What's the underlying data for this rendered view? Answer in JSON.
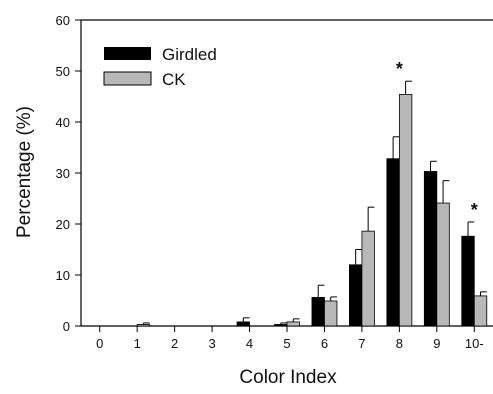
{
  "chart_data": {
    "type": "bar",
    "xlabel": "Color Index",
    "ylabel": "Percentage (%)",
    "ylim": [
      0,
      60
    ],
    "yticks": [
      0,
      10,
      20,
      30,
      40,
      50,
      60
    ],
    "categories": [
      "0",
      "1",
      "2",
      "3",
      "4",
      "5",
      "6",
      "7",
      "8",
      "9",
      "10-"
    ],
    "legend_position": "top-left",
    "grid": false,
    "series": [
      {
        "name": "Girdled",
        "color": "#000000",
        "values": [
          0,
          0,
          0,
          0,
          0.8,
          0.3,
          5.6,
          12.0,
          32.8,
          30.3,
          17.6
        ],
        "errors": [
          0,
          0,
          0,
          0,
          0.8,
          0.3,
          2.4,
          3.0,
          4.3,
          2.0,
          2.8
        ]
      },
      {
        "name": "CK",
        "color": "#b8b8b8",
        "values": [
          0,
          0.3,
          0,
          0,
          0,
          0.8,
          4.9,
          18.6,
          45.4,
          24.1,
          5.9
        ],
        "errors": [
          0,
          0.3,
          0,
          0,
          0,
          0.6,
          0.8,
          4.7,
          2.6,
          4.4,
          0.8
        ]
      }
    ],
    "annotations": [
      {
        "text": "*",
        "category": "8"
      },
      {
        "text": "*",
        "category": "10-"
      }
    ]
  }
}
